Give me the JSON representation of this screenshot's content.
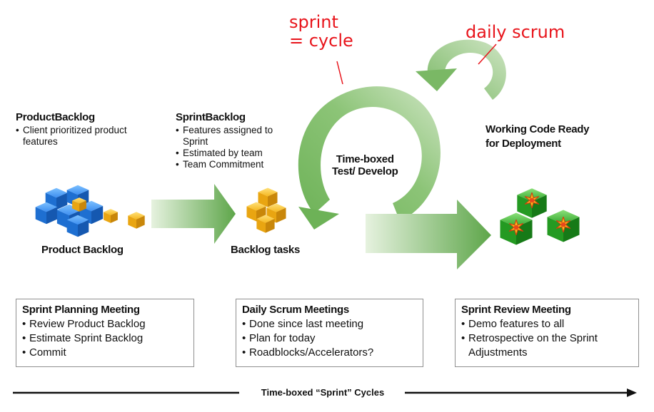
{
  "annotations": {
    "sprint_cycle_line1": "sprint",
    "sprint_cycle_line2": "= cycle",
    "daily_scrum": "daily scrum"
  },
  "product_backlog": {
    "title": "ProductBacklog",
    "bullets": [
      "Client prioritized product features"
    ],
    "icon_label": "Product Backlog"
  },
  "sprint_backlog": {
    "title": "SprintBacklog",
    "bullets": [
      "Features assigned to Sprint",
      "Estimated by team",
      "Team Commitment"
    ],
    "icon_label": "Backlog tasks"
  },
  "cycle": {
    "label_line1": "Time-boxed",
    "label_line2": "Test/ Develop"
  },
  "output": {
    "label_line1": "Working Code Ready",
    "label_line2": "for Deployment"
  },
  "meetings": [
    {
      "title": "Sprint Planning Meeting",
      "items": [
        "Review Product Backlog",
        "Estimate Sprint Backlog",
        "Commit"
      ]
    },
    {
      "title": "Daily Scrum Meetings",
      "items": [
        "Done since last meeting",
        "Plan for today",
        "Roadblocks/Accelerators?"
      ]
    },
    {
      "title": "Sprint Review Meeting",
      "items": [
        "Demo features to all",
        "Retrospective on the Sprint Adjustments"
      ]
    }
  ],
  "timeline": {
    "label": "Time-boxed “Sprint” Cycles"
  },
  "colors": {
    "annotation_red": "#e8141b",
    "arrow_green_light": "#d9ecd0",
    "arrow_green_dark": "#5fa84c",
    "cube_blue": "#2a7fe0",
    "cube_gold": "#f2b418",
    "cube_green": "#2ea12a"
  }
}
